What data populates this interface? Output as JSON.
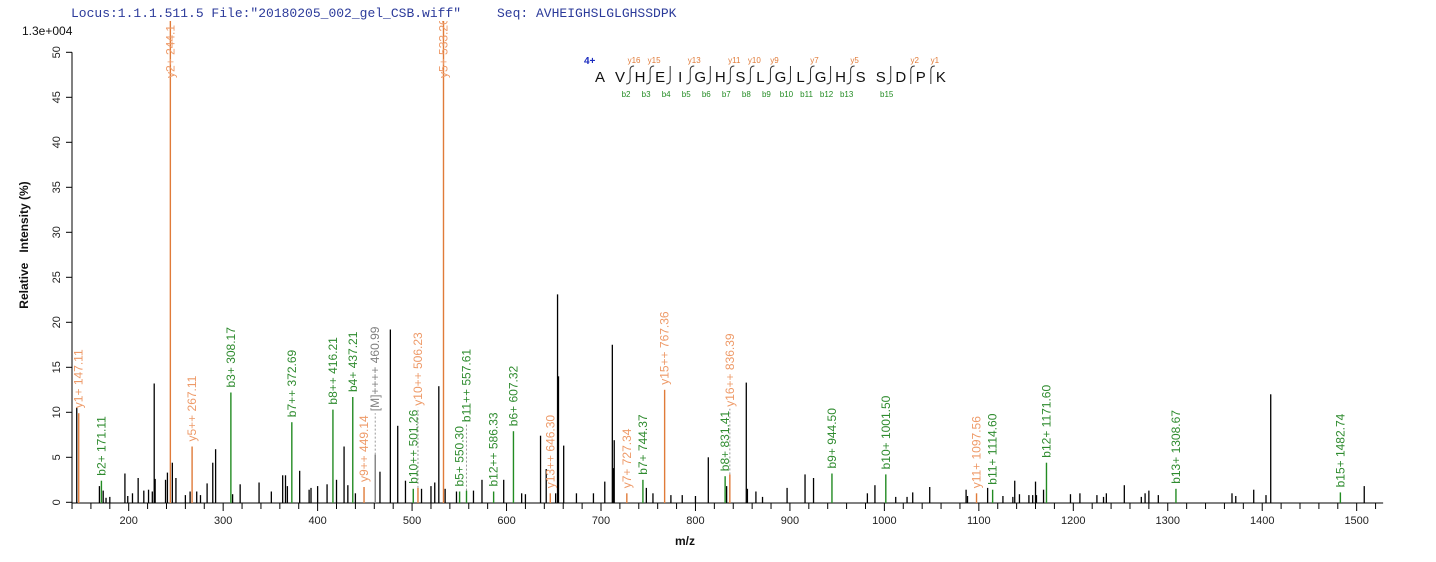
{
  "header": {
    "locus": "Locus:1.1.1.511.5 File:\"20180205_002_gel_CSB.wiff\"",
    "seq": "Seq: AVHEIGHSLGLGHSSDPK"
  },
  "chart_data": {
    "type": "bar",
    "scale_label": "1.3e+004",
    "xlabel": "m/z",
    "ylabel": "Relative   Intensity (%)",
    "xlim": [
      140,
      1528
    ],
    "ylim": [
      0,
      50
    ],
    "xticks": [
      200,
      300,
      400,
      500,
      600,
      700,
      800,
      900,
      1000,
      1100,
      1200,
      1300,
      1400,
      1500
    ],
    "yticks": [
      0,
      5,
      10,
      15,
      20,
      25,
      30,
      35,
      40,
      45,
      50
    ],
    "grid": false,
    "colors": {
      "y_ion": "#e07b39",
      "y_text": "#ee9a68",
      "b_ion": "#228b22",
      "b_text": "#2e8b2e",
      "precursor": "#808080",
      "peak": "#000000"
    },
    "annotated_peaks": [
      {
        "mz": 147.11,
        "intensity": 9.9,
        "ion": "y",
        "label": "y1+ 147.11"
      },
      {
        "mz": 171.11,
        "intensity": 2.4,
        "ion": "b",
        "label": "b2+ 171.11"
      },
      {
        "mz": 244.1,
        "intensity": 53.5,
        "ion": "y",
        "label": "y2+ 244.1"
      },
      {
        "mz": 267.11,
        "intensity": 6.2,
        "ion": "y",
        "label": "y5++ 267.11"
      },
      {
        "mz": 308.17,
        "intensity": 12.2,
        "ion": "b",
        "label": "b3+ 308.17"
      },
      {
        "mz": 372.69,
        "intensity": 8.9,
        "ion": "b",
        "label": "b7++ 372.69"
      },
      {
        "mz": 416.21,
        "intensity": 10.3,
        "ion": "b",
        "label": "b8++ 416.21"
      },
      {
        "mz": 437.21,
        "intensity": 11.7,
        "ion": "b",
        "label": "b4+ 437.21"
      },
      {
        "mz": 449.14,
        "intensity": 1.7,
        "ion": "y",
        "label": "y9++ 449.14"
      },
      {
        "mz": 460.99,
        "intensity": 5.3,
        "ion": "M",
        "label": "[M]++++ 460.99"
      },
      {
        "mz": 501.26,
        "intensity": 1.5,
        "ion": "b",
        "label": "b10++ 501.26"
      },
      {
        "mz": 506.23,
        "intensity": 1.6,
        "ion": "y",
        "label": "y10++ 506.23"
      },
      {
        "mz": 533.26,
        "intensity": 53.5,
        "ion": "y",
        "label": "y5+ 533.26"
      },
      {
        "mz": 550.3,
        "intensity": 1.2,
        "ion": "b",
        "label": "b5+ 550.30"
      },
      {
        "mz": 557.61,
        "intensity": 1.3,
        "ion": "b",
        "label": "b11++ 557.61"
      },
      {
        "mz": 586.33,
        "intensity": 1.2,
        "ion": "b",
        "label": "b12++ 586.33"
      },
      {
        "mz": 607.32,
        "intensity": 7.9,
        "ion": "b",
        "label": "b6+ 607.32"
      },
      {
        "mz": 646.3,
        "intensity": 1.0,
        "ion": "y",
        "label": "y13++ 646.30"
      },
      {
        "mz": 727.34,
        "intensity": 1.0,
        "ion": "y",
        "label": "y7+ 727.34"
      },
      {
        "mz": 744.37,
        "intensity": 2.5,
        "ion": "b",
        "label": "b7+ 744.37"
      },
      {
        "mz": 767.36,
        "intensity": 12.5,
        "ion": "y",
        "label": "y15++ 767.36"
      },
      {
        "mz": 831.41,
        "intensity": 2.9,
        "ion": "b",
        "label": "b8+ 831.41"
      },
      {
        "mz": 836.39,
        "intensity": 3.1,
        "ion": "y",
        "label": "y16++ 836.39"
      },
      {
        "mz": 944.5,
        "intensity": 3.2,
        "ion": "b",
        "label": "b9+ 944.50"
      },
      {
        "mz": 1001.5,
        "intensity": 3.1,
        "ion": "b",
        "label": "b10+ 1001.50"
      },
      {
        "mz": 1097.56,
        "intensity": 1.0,
        "ion": "y",
        "label": "y11+ 1097.56"
      },
      {
        "mz": 1114.6,
        "intensity": 1.4,
        "ion": "b",
        "label": "b11+ 1114.60"
      },
      {
        "mz": 1171.6,
        "intensity": 4.4,
        "ion": "b",
        "label": "b12+ 1171.60"
      },
      {
        "mz": 1308.67,
        "intensity": 1.5,
        "ion": "b",
        "label": "b13+ 1308.67"
      },
      {
        "mz": 1482.74,
        "intensity": 1.1,
        "ion": "b",
        "label": "b15+ 1482.74"
      }
    ],
    "peaks": [
      [
        145,
        10.5
      ],
      [
        169,
        1.8
      ],
      [
        173,
        1.3
      ],
      [
        176,
        0.5
      ],
      [
        180,
        0.6
      ],
      [
        196,
        3.2
      ],
      [
        199,
        0.7
      ],
      [
        204,
        1.0
      ],
      [
        210,
        2.7
      ],
      [
        216,
        1.3
      ],
      [
        221,
        1.4
      ],
      [
        225,
        1.2
      ],
      [
        227,
        13.2
      ],
      [
        228,
        2.6
      ],
      [
        239,
        2.5
      ],
      [
        241,
        3.3
      ],
      [
        246.2,
        4.4
      ],
      [
        250,
        2.7
      ],
      [
        260,
        0.8
      ],
      [
        265,
        1.2
      ],
      [
        272,
        1.2
      ],
      [
        276,
        0.8
      ],
      [
        283,
        2.1
      ],
      [
        289,
        4.4
      ],
      [
        292,
        5.9
      ],
      [
        310,
        0.9
      ],
      [
        318,
        2.0
      ],
      [
        338,
        2.2
      ],
      [
        351,
        1.2
      ],
      [
        363,
        3.0
      ],
      [
        366,
        3.0
      ],
      [
        368,
        1.8
      ],
      [
        381,
        3.5
      ],
      [
        391,
        1.4
      ],
      [
        393,
        1.6
      ],
      [
        400,
        1.8
      ],
      [
        410,
        2.0
      ],
      [
        420,
        2.5
      ],
      [
        428,
        6.2
      ],
      [
        432,
        1.9
      ],
      [
        440,
        1.0
      ],
      [
        466,
        3.4
      ],
      [
        477,
        19.2
      ],
      [
        484.8,
        8.5
      ],
      [
        493,
        2.4
      ],
      [
        510,
        1.5
      ],
      [
        520,
        1.8
      ],
      [
        524,
        2.2
      ],
      [
        528.3,
        12.9
      ],
      [
        535,
        1.5
      ],
      [
        547,
        1.2
      ],
      [
        565,
        1.3
      ],
      [
        574,
        2.5
      ],
      [
        597,
        2.5
      ],
      [
        616,
        1.0
      ],
      [
        620,
        0.9
      ],
      [
        636,
        7.4
      ],
      [
        642,
        3.7
      ],
      [
        652,
        1.0
      ],
      [
        654,
        23.1
      ],
      [
        655,
        14.0
      ],
      [
        660.5,
        6.3
      ],
      [
        674,
        1.0
      ],
      [
        692,
        1.0
      ],
      [
        704,
        2.3
      ],
      [
        712,
        17.5
      ],
      [
        713,
        3.8
      ],
      [
        714,
        6.9
      ],
      [
        748,
        1.6
      ],
      [
        755,
        1.0
      ],
      [
        774,
        0.8
      ],
      [
        786,
        0.8
      ],
      [
        800,
        0.7
      ],
      [
        813.6,
        5.0
      ],
      [
        833,
        1.8
      ],
      [
        853.8,
        13.3
      ],
      [
        855,
        1.5
      ],
      [
        864,
        1.2
      ],
      [
        871,
        0.6
      ],
      [
        897,
        1.6
      ],
      [
        916,
        3.1
      ],
      [
        925,
        2.7
      ],
      [
        982,
        1.0
      ],
      [
        990,
        1.9
      ],
      [
        1012,
        0.6
      ],
      [
        1024,
        0.6
      ],
      [
        1030,
        1.1
      ],
      [
        1048,
        1.7
      ],
      [
        1086.5,
        1.4
      ],
      [
        1088,
        0.7
      ],
      [
        1109.3,
        1.6
      ],
      [
        1125.5,
        0.7
      ],
      [
        1136,
        0.6
      ],
      [
        1138,
        2.4
      ],
      [
        1143,
        0.9
      ],
      [
        1153,
        0.8
      ],
      [
        1157,
        0.8
      ],
      [
        1160,
        2.3
      ],
      [
        1161,
        0.8
      ],
      [
        1168.5,
        1.4
      ],
      [
        1197,
        0.9
      ],
      [
        1207,
        1.0
      ],
      [
        1225,
        0.8
      ],
      [
        1232,
        0.6
      ],
      [
        1235,
        1.0
      ],
      [
        1254,
        1.9
      ],
      [
        1272,
        0.6
      ],
      [
        1276,
        1.0
      ],
      [
        1280,
        1.3
      ],
      [
        1290,
        0.8
      ],
      [
        1368,
        1.0
      ],
      [
        1372,
        0.7
      ],
      [
        1391,
        1.4
      ],
      [
        1404,
        0.8
      ],
      [
        1409,
        12.0
      ],
      [
        1508,
        1.8
      ]
    ]
  },
  "sequence_map": {
    "charge": "4+",
    "residues": [
      "A",
      "V",
      "H",
      "E",
      "I",
      "G",
      "H",
      "S",
      "L",
      "G",
      "L",
      "G",
      "H",
      "S",
      "S",
      "D",
      "P",
      "K"
    ],
    "cleavages": [
      {
        "after": 2,
        "b": "b2",
        "y": "y16"
      },
      {
        "after": 3,
        "b": "b3",
        "y": "y15"
      },
      {
        "after": 4,
        "b": "b4",
        "y": ""
      },
      {
        "after": 5,
        "b": "b5",
        "y": "y13"
      },
      {
        "after": 6,
        "b": "b6",
        "y": ""
      },
      {
        "after": 7,
        "b": "b7",
        "y": "y11"
      },
      {
        "after": 8,
        "b": "b8",
        "y": "y10"
      },
      {
        "after": 9,
        "b": "b9",
        "y": "y9"
      },
      {
        "after": 10,
        "b": "b10",
        "y": ""
      },
      {
        "after": 11,
        "b": "b11",
        "y": "y7"
      },
      {
        "after": 12,
        "b": "b12",
        "y": ""
      },
      {
        "after": 13,
        "b": "b13",
        "y": "y5"
      },
      {
        "after": 15,
        "b": "b15",
        "y": ""
      },
      {
        "after": 16,
        "b": "",
        "y": "y2"
      },
      {
        "after": 17,
        "b": "",
        "y": "y1"
      }
    ]
  }
}
